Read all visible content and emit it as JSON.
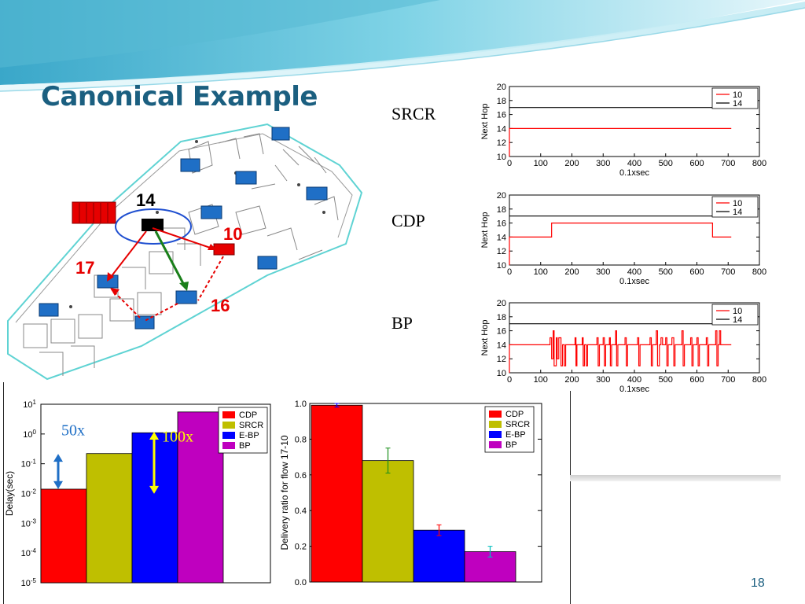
{
  "slide": {
    "title": "Canonical Example",
    "number": "18"
  },
  "colors": {
    "title": "#1b5f80",
    "red": "#ff0000",
    "yellow_green": "#bfbf00",
    "blue": "#0000ff",
    "magenta": "#bf00bf",
    "node_blue": "#1f6fc6",
    "floor_outline": "#5fd3d3"
  },
  "floorplan": {
    "node_labels": [
      "14",
      "10",
      "17",
      "16"
    ],
    "icons": [
      "router-node-icon",
      "server-rack-icon",
      "selected-node-ellipse"
    ]
  },
  "next_hop_charts": {
    "protocols": [
      "SRCR",
      "CDP",
      "BP"
    ],
    "ylabel": "Next Hop",
    "xlabel": "0.1xsec",
    "ylim": [
      10,
      20
    ],
    "xlim": [
      0,
      800
    ],
    "yticks": [
      "20",
      "18",
      "16",
      "14",
      "12",
      "10"
    ],
    "xticks": [
      "0",
      "100",
      "200",
      "300",
      "400",
      "500",
      "600",
      "700",
      "800"
    ],
    "legend": [
      "10",
      "14"
    ]
  },
  "bar_annotations": {
    "factor_small": "50x",
    "factor_large": "100x"
  },
  "legend_labels": [
    "CDP",
    "SRCR",
    "E-BP",
    "BP"
  ],
  "chart_data": [
    {
      "type": "line",
      "protocol": "SRCR",
      "xlabel": "0.1xsec",
      "ylabel": "Next Hop",
      "xlim": [
        0,
        800
      ],
      "ylim": [
        10,
        20
      ],
      "series": [
        {
          "name": "10",
          "color": "#ff0000",
          "x": [
            0,
            0,
            710
          ],
          "y": [
            10,
            14,
            14
          ]
        },
        {
          "name": "14",
          "color": "#000000",
          "x": [
            0,
            710
          ],
          "y": [
            17,
            17
          ]
        }
      ]
    },
    {
      "type": "line",
      "protocol": "CDP",
      "xlabel": "0.1xsec",
      "ylabel": "Next Hop",
      "xlim": [
        0,
        800
      ],
      "ylim": [
        10,
        20
      ],
      "series": [
        {
          "name": "10",
          "color": "#ff0000",
          "x": [
            0,
            0,
            135,
            135,
            650,
            650,
            710
          ],
          "y": [
            10,
            14,
            14,
            16,
            16,
            14,
            14
          ]
        },
        {
          "name": "14",
          "color": "#000000",
          "x": [
            0,
            710
          ],
          "y": [
            17,
            17
          ]
        }
      ]
    },
    {
      "type": "line",
      "protocol": "BP",
      "xlabel": "0.1xsec",
      "ylabel": "Next Hop",
      "xlim": [
        0,
        800
      ],
      "ylim": [
        10,
        20
      ],
      "series": [
        {
          "name": "10",
          "color": "#ff0000",
          "x": [
            0,
            0,
            70,
            70,
            130,
            130,
            135,
            135,
            140,
            140,
            143,
            143,
            150,
            150,
            153,
            153,
            158,
            158,
            165,
            165,
            170,
            170,
            176,
            176,
            180,
            180,
            186,
            186,
            210,
            210,
            213,
            213,
            216,
            216,
            220,
            220,
            233,
            233,
            236,
            236,
            240,
            240,
            246,
            246,
            250,
            250,
            280,
            280,
            284,
            284,
            288,
            288,
            300,
            300,
            304,
            304,
            308,
            308,
            320,
            320,
            323,
            323,
            327,
            327,
            340,
            340,
            343,
            343,
            347,
            347,
            370,
            370,
            374,
            374,
            378,
            378,
            410,
            410,
            414,
            414,
            418,
            418,
            450,
            450,
            454,
            454,
            458,
            458,
            470,
            470,
            474,
            474,
            480,
            480,
            485,
            485,
            490,
            490,
            500,
            500,
            504,
            504,
            508,
            508,
            520,
            520,
            526,
            526,
            530,
            530,
            552,
            552,
            556,
            556,
            560,
            560,
            580,
            580,
            584,
            584,
            588,
            588,
            600,
            600,
            604,
            604,
            608,
            608,
            630,
            630,
            634,
            634,
            638,
            638,
            660,
            660,
            664,
            664,
            668,
            668,
            672,
            672,
            676,
            676,
            710
          ],
          "y": [
            10,
            14,
            14,
            14,
            14,
            15,
            15,
            12,
            12,
            16,
            16,
            11,
            11,
            15,
            15,
            12,
            12,
            15,
            15,
            11,
            11,
            14,
            14,
            11,
            11,
            14,
            14,
            14,
            14,
            15,
            15,
            11,
            11,
            14,
            14,
            14,
            14,
            15,
            15,
            11,
            11,
            14,
            14,
            11,
            11,
            14,
            14,
            15,
            15,
            11,
            11,
            14,
            14,
            15,
            15,
            11,
            11,
            14,
            14,
            15,
            15,
            11,
            11,
            14,
            14,
            16,
            16,
            11,
            11,
            14,
            14,
            15,
            15,
            11,
            11,
            14,
            14,
            15,
            15,
            11,
            11,
            14,
            14,
            15,
            15,
            11,
            11,
            14,
            14,
            16,
            16,
            11,
            11,
            14,
            14,
            15,
            15,
            14,
            14,
            15,
            15,
            11,
            11,
            14,
            14,
            15,
            15,
            11,
            11,
            14,
            14,
            16,
            16,
            11,
            11,
            14,
            14,
            15,
            15,
            11,
            11,
            14,
            14,
            15,
            15,
            11,
            11,
            14,
            14,
            15,
            15,
            11,
            11,
            14,
            14,
            16,
            16,
            11,
            11,
            14,
            14,
            16,
            16,
            14,
            14
          ]
        },
        {
          "name": "14",
          "color": "#000000",
          "x": [
            0,
            710
          ],
          "y": [
            17,
            17
          ]
        }
      ]
    },
    {
      "type": "bar",
      "ylabel": "Delay(sec)",
      "yscale": "log",
      "ylim": [
        1e-05,
        10
      ],
      "categories": [
        "CDP",
        "SRCR",
        "E-BP",
        "BP"
      ],
      "values": [
        0.014,
        0.22,
        1.1,
        5.5
      ],
      "colors": [
        "#ff0000",
        "#bfbf00",
        "#0000ff",
        "#bf00bf"
      ],
      "legend": [
        "CDP",
        "SRCR",
        "E-BP",
        "BP"
      ],
      "legend_position": "top-right"
    },
    {
      "type": "bar",
      "ylabel": "Delivery ratio for flow 17-10",
      "ylim": [
        0,
        1.0
      ],
      "categories": [
        "CDP",
        "SRCR",
        "E-BP",
        "BP"
      ],
      "values": [
        0.99,
        0.68,
        0.29,
        0.17
      ],
      "errors": [
        0.01,
        0.07,
        0.03,
        0.03
      ],
      "colors": [
        "#ff0000",
        "#bfbf00",
        "#0000ff",
        "#bf00bf"
      ],
      "legend": [
        "CDP",
        "SRCR",
        "E-BP",
        "BP"
      ],
      "legend_position": "top-right"
    }
  ]
}
